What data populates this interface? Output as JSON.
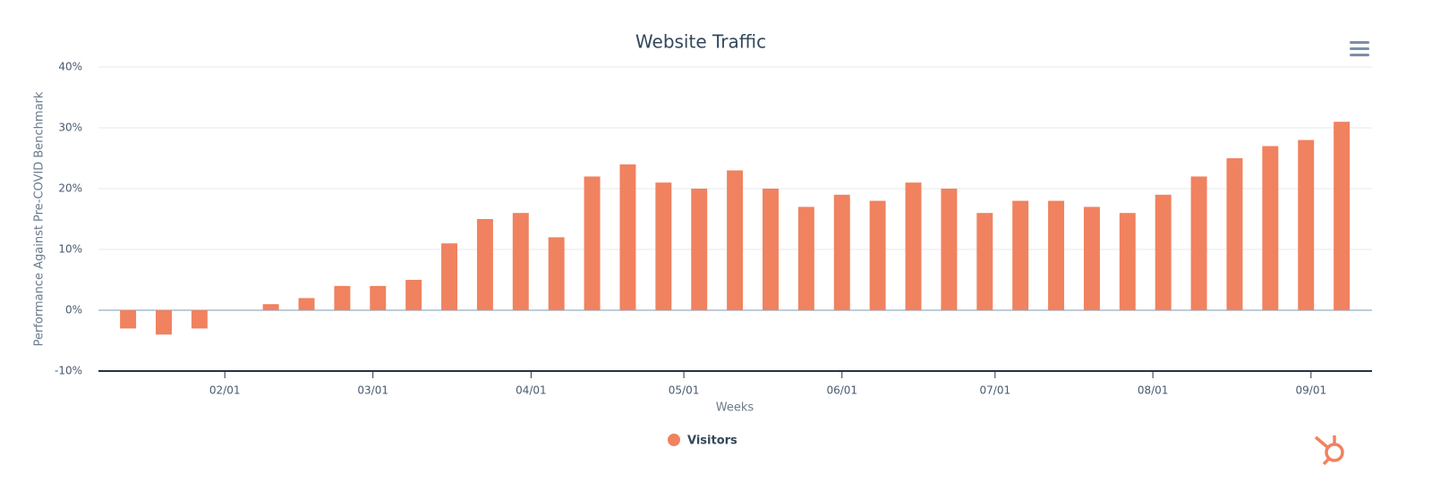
{
  "chart_data": {
    "type": "bar",
    "title": "Website Traffic",
    "x_label": "Weeks",
    "y_label": "Performance Against Pre-COVID Benchmark",
    "categories": [
      null,
      null,
      null,
      null,
      null,
      null,
      null,
      null,
      null,
      null,
      null,
      null,
      null,
      null,
      null,
      null,
      null,
      null,
      null,
      null,
      null,
      null,
      null,
      null,
      null,
      null,
      null,
      null,
      null,
      null,
      null,
      null,
      null,
      null,
      null
    ],
    "series": [
      {
        "name": "Visitors",
        "color": "#f0825f",
        "values": [
          -3,
          -4,
          -3,
          0,
          1,
          2,
          4,
          4,
          5,
          11,
          15,
          16,
          12,
          22,
          24,
          21,
          20,
          23,
          20,
          17,
          19,
          18,
          21,
          20,
          16,
          18,
          18,
          17,
          16,
          19,
          22,
          25,
          27,
          28,
          31
        ]
      }
    ],
    "xlim": [
      -0.83,
      34.85
    ],
    "xticks": [
      {
        "value": 2.71,
        "label": "02/01"
      },
      {
        "value": 6.86,
        "label": "03/01"
      },
      {
        "value": 11.29,
        "label": "04/01"
      },
      {
        "value": 15.57,
        "label": "05/01"
      },
      {
        "value": 20,
        "label": "06/01"
      },
      {
        "value": 24.29,
        "label": "07/01"
      },
      {
        "value": 28.71,
        "label": "08/01"
      },
      {
        "value": 33.14,
        "label": "09/01"
      }
    ],
    "ylim": [
      -10,
      40
    ],
    "yticks": [
      {
        "value": -10,
        "label": "-10%"
      },
      {
        "value": 0,
        "label": "0%"
      },
      {
        "value": 10,
        "label": "10%"
      },
      {
        "value": 20,
        "label": "20%"
      },
      {
        "value": 30,
        "label": "30%"
      },
      {
        "value": 40,
        "label": "40%"
      }
    ],
    "grid": true,
    "legend": "bottom"
  }
}
